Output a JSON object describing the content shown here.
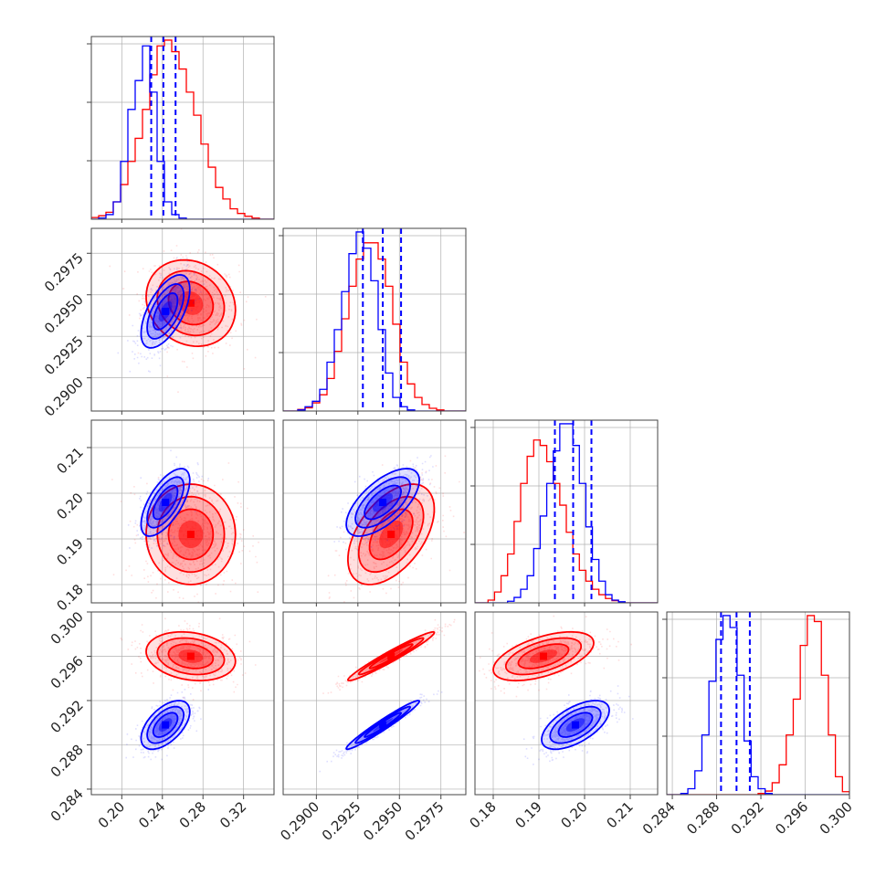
{
  "colors": {
    "series_a": "#ff0000",
    "series_b": "#0000ff",
    "grid": "#b0b0b0",
    "frame": "#444444"
  },
  "chart_data": {
    "type": "corner",
    "grid": true,
    "parameters": [
      {
        "range": [
          0.17,
          0.35
        ],
        "ticks": [
          0.2,
          0.24,
          0.28,
          0.32
        ],
        "tick_labels": [
          "0.20",
          "0.24",
          "0.28",
          "0.32"
        ]
      },
      {
        "range": [
          0.288,
          0.299
        ],
        "ticks": [
          0.29,
          0.2925,
          0.295,
          0.2975
        ],
        "tick_labels": [
          "0.2900",
          "0.2925",
          "0.2950",
          "0.2975"
        ]
      },
      {
        "range": [
          0.176,
          0.216
        ],
        "ticks": [
          0.18,
          0.19,
          0.2,
          0.21
        ],
        "tick_labels": [
          "0.18",
          "0.19",
          "0.20",
          "0.21"
        ]
      },
      {
        "range": [
          0.2835,
          0.3
        ],
        "ticks": [
          0.284,
          0.288,
          0.292,
          0.296,
          0.3
        ],
        "tick_labels": [
          "0.284",
          "0.288",
          "0.292",
          "0.296",
          "0.300"
        ]
      }
    ],
    "series": [
      {
        "color": "#ff0000",
        "means": [
          0.268,
          0.2945,
          0.191,
          0.296
        ],
        "sigmas": [
          0.022,
          0.0013,
          0.0055,
          0.0011
        ],
        "correlations": [
          [
            0,
            1,
            -0.15
          ],
          [
            0,
            2,
            0.0
          ],
          [
            0,
            3,
            -0.2
          ],
          [
            1,
            2,
            0.5
          ],
          [
            1,
            3,
            0.97
          ],
          [
            2,
            3,
            0.55
          ]
        ]
      },
      {
        "color": "#0000ff",
        "means": [
          0.243,
          0.294,
          0.198,
          0.2898
        ],
        "sigmas": [
          0.012,
          0.0011,
          0.0037,
          0.0011
        ],
        "correlations": [
          [
            0,
            1,
            0.6
          ],
          [
            0,
            2,
            0.65
          ],
          [
            0,
            3,
            0.55
          ],
          [
            1,
            2,
            0.65
          ],
          [
            1,
            3,
            0.97
          ],
          [
            2,
            3,
            0.6
          ]
        ]
      }
    ],
    "quantile_lines": {
      "color": "#0000ff",
      "values": [
        [
          0.229,
          0.241,
          0.253
        ],
        [
          0.2928,
          0.294,
          0.2951
        ],
        [
          0.1935,
          0.1975,
          0.2015
        ],
        [
          0.2884,
          0.2898,
          0.291
        ]
      ]
    },
    "histograms": [
      {
        "edges_range": [
          0.17,
          0.35
        ],
        "bins": 25,
        "a": [
          0.3,
          0.6,
          1.2,
          3,
          6,
          10,
          14,
          19,
          25,
          30,
          31,
          29,
          26,
          22,
          18,
          13,
          9,
          5.5,
          3.5,
          1.8,
          1,
          0.5,
          0.2,
          0,
          0
        ],
        "b": [
          0,
          0.2,
          0.8,
          3,
          10,
          19,
          24,
          30,
          22,
          10,
          3,
          0.8,
          0.2,
          0,
          0,
          0,
          0,
          0,
          0,
          0,
          0,
          0,
          0,
          0,
          0
        ]
      },
      {
        "edges_range": [
          0.288,
          0.299
        ],
        "bins": 25,
        "a": [
          0,
          0,
          0.3,
          0.6,
          1.5,
          3,
          6,
          11,
          17,
          23,
          28,
          31,
          31,
          28,
          23,
          16,
          9,
          5,
          2.5,
          1.2,
          0.5,
          0.2,
          0,
          0,
          0
        ],
        "b": [
          0,
          0,
          0.2,
          0.8,
          1.8,
          4,
          9,
          15,
          22,
          29,
          33,
          30,
          24,
          15,
          7,
          2.5,
          0.8,
          0.2,
          0,
          0,
          0,
          0,
          0,
          0,
          0
        ]
      },
      {
        "edges_range": [
          0.176,
          0.216
        ],
        "bins": 28,
        "a": [
          0,
          0,
          0.5,
          2,
          5,
          9,
          15,
          22,
          27,
          30,
          29,
          26,
          22,
          18,
          13,
          9,
          6,
          4,
          2.5,
          1.5,
          0.8,
          0.4,
          0.1,
          0,
          0,
          0,
          0,
          0
        ],
        "b": [
          0,
          0,
          0,
          0,
          0,
          0.3,
          1,
          2.5,
          5,
          10,
          16,
          22,
          28,
          33,
          33,
          29,
          22,
          14,
          8,
          4,
          1.5,
          0.5,
          0.2,
          0,
          0,
          0,
          0,
          0
        ]
      },
      {
        "edges_range": [
          0.2835,
          0.3
        ],
        "bins": 26,
        "a": [
          0,
          0,
          0,
          0,
          0,
          0,
          0,
          0,
          0,
          0,
          0,
          0,
          0,
          0.2,
          0.6,
          2,
          5,
          10,
          16,
          25,
          30,
          29,
          20,
          10,
          3,
          0.5
        ],
        "b": [
          0,
          0,
          0.2,
          1,
          4,
          10,
          19,
          26,
          30,
          28,
          20,
          9,
          3,
          1,
          0.2,
          0,
          0,
          0,
          0,
          0,
          0,
          0,
          0,
          0,
          0,
          0
        ]
      }
    ]
  }
}
